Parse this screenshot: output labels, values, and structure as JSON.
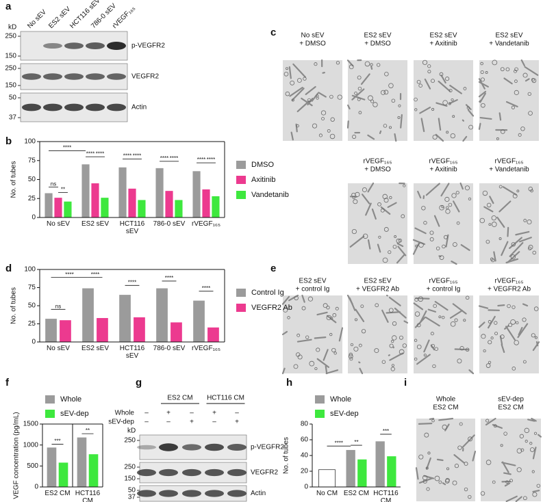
{
  "panel_letters": [
    "a",
    "b",
    "c",
    "d",
    "e",
    "f",
    "g",
    "h",
    "i"
  ],
  "blots": {
    "a": {
      "lanes": [
        "No sEV",
        "ES2 sEV",
        "HCT116 sEV",
        "786-0 sEV",
        "rVEGF₁₆₅"
      ],
      "marker_unit": "kD",
      "rows": [
        {
          "label": "p-VEGFR2",
          "markers": [
            250,
            150
          ]
        },
        {
          "label": "VEGFR2",
          "markers": [
            250,
            150
          ]
        },
        {
          "label": "Actin",
          "markers": [
            50,
            37
          ]
        }
      ]
    },
    "g": {
      "groups": [
        "ES2 CM",
        "HCT116 CM"
      ],
      "conditions": [
        {
          "label": "Whole",
          "signs": [
            "–",
            "+",
            "–",
            "+",
            "–"
          ]
        },
        {
          "label": "sEV-dep",
          "signs": [
            "–",
            "–",
            "+",
            "–",
            "+"
          ]
        }
      ],
      "marker_unit": "kD",
      "rows": [
        {
          "label": "p-VEGFR2",
          "markers": [
            250
          ]
        },
        {
          "label": "VEGFR2",
          "markers": [
            250,
            150
          ]
        },
        {
          "label": "Actin",
          "markers": [
            50,
            37
          ]
        }
      ]
    }
  },
  "micrographs": {
    "c": [
      [
        "No sEV",
        "+ DMSO"
      ],
      [
        "ES2 sEV",
        "+ DMSO"
      ],
      [
        "ES2 sEV",
        "+ Axitinib"
      ],
      [
        "ES2 sEV",
        "+ Vandetanib"
      ],
      [
        "rVEGF₁₆₅",
        "+ DMSO"
      ],
      [
        "rVEGF₁₆₅",
        "+ Axitinib"
      ],
      [
        "rVEGF₁₆₅",
        "+ Vandetanib"
      ]
    ],
    "e": [
      [
        "ES2 sEV",
        "+ control Ig"
      ],
      [
        "ES2 sEV",
        "+ VEGFR2 Ab"
      ],
      [
        "rVEGF₁₆₅",
        "+ control Ig"
      ],
      [
        "rVEGF₁₆₅",
        "+ VEGFR2 Ab"
      ]
    ],
    "i": [
      [
        "Whole",
        "ES2 CM"
      ],
      [
        "sEV-dep",
        "ES2 CM"
      ]
    ]
  },
  "chart_data": [
    {
      "type": "bar",
      "ylabel": "No. of tubes",
      "categories": [
        "No sEV",
        "ES2 sEV",
        "HCT116 sEV",
        "786-0 sEV",
        "rVEGF₁₆₅"
      ],
      "series": [
        {
          "name": "DMSO",
          "color": "#9b9b9b",
          "values": [
            32,
            70,
            66,
            65,
            61
          ]
        },
        {
          "name": "Axitinib",
          "color": "#ec3a8f",
          "values": [
            26,
            45,
            38,
            35,
            37
          ]
        },
        {
          "name": "Vandetanib",
          "color": "#3ee83e",
          "values": [
            21,
            26,
            23,
            23,
            28
          ]
        }
      ],
      "ylim": [
        0,
        100
      ],
      "yticks": [
        0,
        25,
        50,
        75,
        100
      ],
      "legend": "right",
      "box": true,
      "significance": [
        "****",
        "ns",
        "**",
        "****",
        "****",
        "****",
        "****",
        "****",
        "****",
        "****",
        "****"
      ]
    },
    {
      "type": "bar",
      "ylabel": "No. of tubes",
      "categories": [
        "No sEV",
        "ES2 sEV",
        "HCT116 sEV",
        "786-0 sEV",
        "rVEGF₁₆₅"
      ],
      "series": [
        {
          "name": "Control Ig",
          "color": "#9b9b9b",
          "values": [
            32,
            74,
            65,
            74,
            57
          ]
        },
        {
          "name": "VEGFR2 Ab",
          "color": "#ec3a8f",
          "values": [
            30,
            33,
            34,
            27,
            20
          ]
        }
      ],
      "ylim": [
        0,
        100
      ],
      "yticks": [
        0,
        25,
        50,
        75,
        100
      ],
      "legend": "right",
      "box": true,
      "significance": [
        "****",
        "ns",
        "****",
        "****",
        "****",
        "****"
      ]
    },
    {
      "type": "bar",
      "ylabel": "VEGF concentration (pg/mL)",
      "categories": [
        "ES2 CM",
        "HCT116 CM"
      ],
      "series": [
        {
          "name": "Whole",
          "color": "#9b9b9b",
          "values": [
            940,
            1180
          ]
        },
        {
          "name": "sEV-dep",
          "color": "#3ee83e",
          "values": [
            580,
            780
          ]
        }
      ],
      "ylim": [
        0,
        1500
      ],
      "yticks": [
        0,
        500,
        1000,
        1500
      ],
      "legend": "top",
      "box": true,
      "significance": [
        "***",
        "**"
      ]
    },
    {
      "type": "bar",
      "ylabel": "No. of tubes",
      "categories": [
        "No CM",
        "ES2 CM",
        "HCT116 CM"
      ],
      "series": [
        {
          "name": "Whole",
          "color": "#9b9b9b",
          "values": [
            null,
            47,
            58
          ]
        },
        {
          "name": "sEV-dep",
          "color": "#3ee83e",
          "values": [
            null,
            35,
            39
          ]
        },
        {
          "color": "#ffffff",
          "values": [
            22,
            null,
            null
          ]
        }
      ],
      "ylim": [
        0,
        80
      ],
      "yticks": [
        0,
        20,
        40,
        60,
        80
      ],
      "legend": "top",
      "box": false,
      "significance": [
        "****",
        "**",
        "***"
      ]
    }
  ]
}
